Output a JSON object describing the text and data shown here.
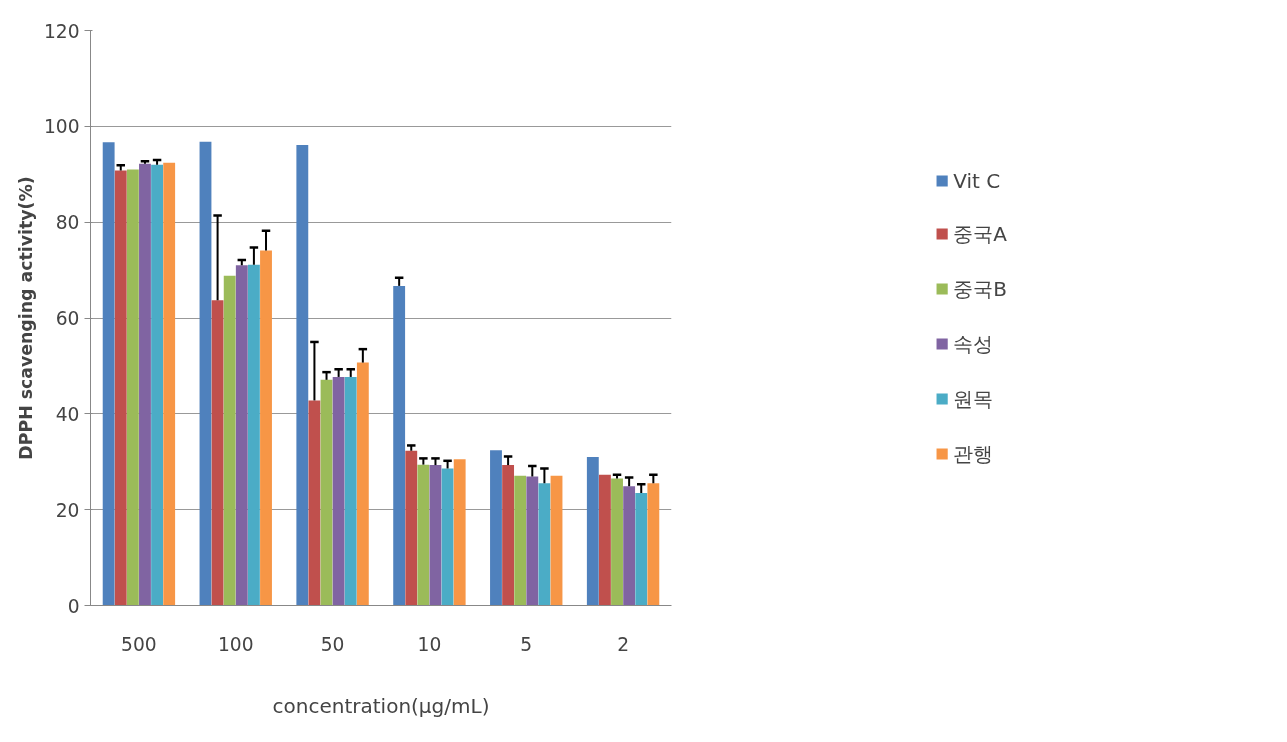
{
  "chart_data": {
    "type": "bar",
    "xlabel": "concentration(µg/mL)",
    "ylabel": "DPPH scavenging activity(%)",
    "categories": [
      "500",
      "100",
      "50",
      "10",
      "5",
      "2"
    ],
    "ylim": [
      0,
      120
    ],
    "yticks": [
      0,
      20,
      40,
      60,
      80,
      100,
      120
    ],
    "grid": "y",
    "legend": "right",
    "series": [
      {
        "name": "Vit C",
        "color": "#4f81bd",
        "values": [
          96.7,
          96.8,
          96.1,
          66.7,
          32.4,
          31.0
        ],
        "errors": [
          null,
          null,
          null,
          [
            66.7,
            68.4
          ],
          null,
          null
        ]
      },
      {
        "name": "중국A",
        "color": "#c0504d",
        "values": [
          90.8,
          63.7,
          42.8,
          32.3,
          29.3,
          27.3
        ],
        "errors": [
          [
            90.8,
            91.9
          ],
          [
            63.7,
            81.4
          ],
          [
            42.8,
            55.0
          ],
          [
            32.3,
            33.4
          ],
          [
            29.3,
            31.1
          ],
          null
        ]
      },
      {
        "name": "중국B",
        "color": "#9bbb59",
        "values": [
          91.0,
          68.8,
          47.1,
          29.4,
          27.1,
          26.5
        ],
        "errors": [
          null,
          null,
          [
            47.1,
            48.7
          ],
          [
            29.4,
            30.7
          ],
          null,
          [
            26.5,
            27.3
          ]
        ]
      },
      {
        "name": "속성",
        "color": "#8064a2",
        "values": [
          92.2,
          71.0,
          47.7,
          29.3,
          26.9,
          24.9
        ],
        "errors": [
          [
            92.2,
            92.7
          ],
          [
            71.0,
            72.1
          ],
          [
            47.7,
            49.3
          ],
          [
            29.3,
            30.7
          ],
          [
            26.9,
            29.1
          ],
          [
            24.9,
            26.7
          ]
        ]
      },
      {
        "name": "원목",
        "color": "#4bacc6",
        "values": [
          92.0,
          71.1,
          47.7,
          28.6,
          25.5,
          23.5
        ],
        "errors": [
          [
            92.0,
            93.0
          ],
          [
            71.1,
            74.7
          ],
          [
            47.7,
            49.3
          ],
          [
            28.6,
            30.2
          ],
          [
            25.5,
            28.6
          ],
          [
            23.5,
            25.3
          ]
        ]
      },
      {
        "name": "관행",
        "color": "#f79646",
        "values": [
          92.4,
          74.1,
          50.7,
          30.5,
          27.1,
          25.5
        ],
        "errors": [
          null,
          [
            74.1,
            78.2
          ],
          [
            50.7,
            53.5
          ],
          null,
          null,
          [
            25.5,
            27.3
          ]
        ]
      }
    ]
  }
}
